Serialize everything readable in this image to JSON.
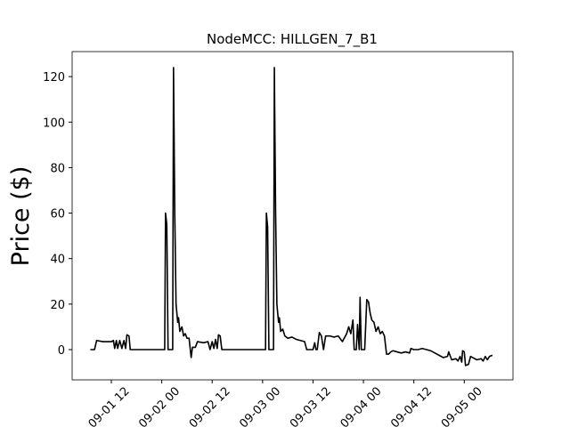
{
  "chart_data": {
    "type": "line",
    "title": "NodeMCC: HILLGEN_7_B1",
    "y_label": "Price ($)",
    "series": [
      {
        "color": "#000000",
        "x": [
          7,
          8,
          8.5,
          10,
          12,
          12.5,
          12.8,
          13.2,
          13.5,
          14,
          14.5,
          15,
          15.4,
          15.7,
          16.2,
          16.5,
          20,
          24,
          24.7,
          24.9,
          25.2,
          25.5,
          26,
          26.6,
          26.8,
          27.1,
          27.4,
          27.8,
          28,
          28.3,
          28.8,
          29.2,
          29.6,
          30,
          30.5,
          31,
          31.3,
          32,
          32.5,
          34,
          35,
          35.5,
          36,
          36.4,
          36.8,
          37.2,
          37.5,
          37.9,
          38.3,
          42,
          48,
          48.7,
          48.9,
          49.2,
          49.5,
          50.6,
          50.8,
          51.1,
          51.4,
          51.8,
          52,
          52.3,
          52.8,
          53.3,
          54,
          55,
          56,
          57,
          58,
          58.5,
          60,
          60.4,
          60.7,
          61,
          61.5,
          62,
          62.5,
          63,
          64,
          65,
          66,
          67,
          68,
          68.5,
          69,
          69.5,
          69.8,
          70.3,
          70.6,
          71,
          71.2,
          71.5,
          72.3,
          72.8,
          73.2,
          73.6,
          74,
          74.5,
          75,
          75.5,
          76,
          76.5,
          77,
          77.5,
          78,
          78.5,
          79,
          80,
          81,
          82,
          83,
          83.3,
          84,
          85,
          86,
          87,
          88,
          89,
          90,
          91,
          92,
          92.3,
          92.6,
          93,
          94,
          94.5,
          95,
          95.4,
          95.6,
          96,
          96.3,
          97,
          97.5,
          98,
          99,
          100,
          100.5,
          101,
          101.5,
          102,
          102.7
        ],
        "values": [
          0,
          0,
          4,
          3.5,
          3.5,
          4,
          0.5,
          4,
          0.5,
          4,
          0.5,
          4,
          0.5,
          6.5,
          6,
          0,
          0,
          0,
          0,
          60,
          55,
          0,
          0,
          0,
          124,
          60,
          20,
          12,
          14,
          8,
          10,
          6,
          7,
          5,
          5,
          -3.5,
          1,
          1,
          3.5,
          3,
          3.5,
          0,
          3.5,
          0.5,
          4.5,
          0.5,
          6.5,
          6,
          0,
          0,
          0,
          0,
          60,
          54,
          0,
          0,
          124,
          60,
          20,
          12,
          14,
          8,
          9,
          6,
          5,
          5.5,
          4.5,
          4,
          3.5,
          0,
          0,
          3,
          0,
          0,
          7.5,
          6,
          0,
          6,
          6,
          5.5,
          6,
          3.5,
          7,
          10,
          7,
          13,
          0,
          0,
          11,
          0,
          23,
          0,
          0,
          22,
          21,
          16,
          13,
          12,
          8,
          10,
          7,
          8,
          6,
          -2,
          -2,
          -1,
          -0.5,
          -1,
          -1.5,
          -1,
          -1.5,
          0.5,
          0,
          0,
          0.5,
          0,
          -0.5,
          -1.5,
          -2.5,
          -3.5,
          -3,
          -1,
          -2.5,
          -4.5,
          -4,
          -5,
          -3,
          -5.5,
          -0.5,
          -1,
          -7,
          -6.5,
          -3,
          -3.5,
          -4.5,
          -4,
          -5,
          -3,
          -4.5,
          -3,
          -2.5
        ]
      }
    ],
    "xlim": [
      2.67,
      107.6
    ],
    "xticks": [
      {
        "value": 12,
        "label": "09-01 12"
      },
      {
        "value": 24,
        "label": "09-02 00"
      },
      {
        "value": 36,
        "label": "09-02 12"
      },
      {
        "value": 48,
        "label": "09-03 00"
      },
      {
        "value": 60,
        "label": "09-03 12"
      },
      {
        "value": 72,
        "label": "09-04 00"
      },
      {
        "value": 84,
        "label": "09-04 12"
      },
      {
        "value": 96,
        "label": "09-05 00"
      }
    ],
    "ylim": [
      -13.3,
      131
    ],
    "yticks": [
      0,
      20,
      40,
      60,
      80,
      100,
      120
    ]
  }
}
